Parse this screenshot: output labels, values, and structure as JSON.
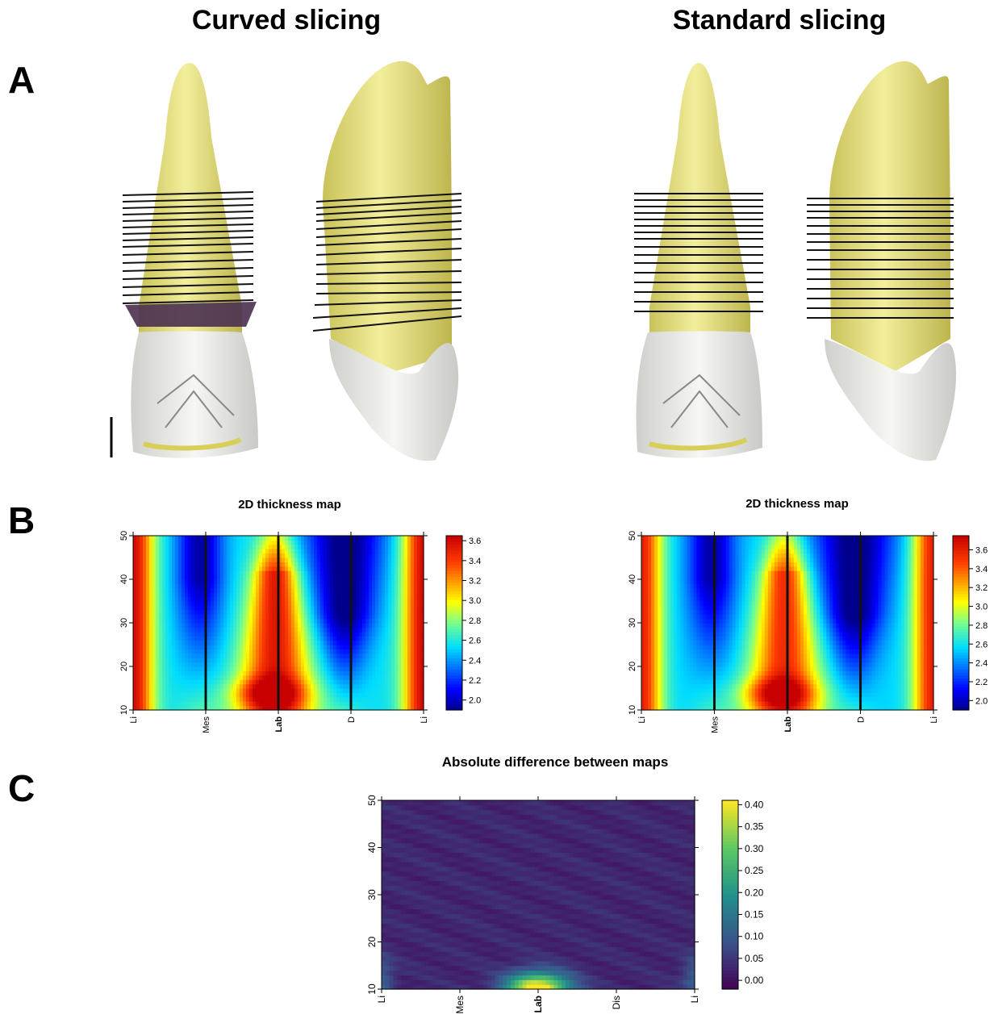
{
  "titles": {
    "curved": "Curved slicing",
    "standard": "Standard slicing"
  },
  "panels": {
    "a": "A",
    "b": "B",
    "c": "C"
  },
  "colors": {
    "enamel": "#f1f2ee",
    "dentine": "#e6df72",
    "slice": "#111111"
  },
  "chart_data": [
    {
      "type": "heatmap",
      "title": "2D thickness map",
      "panel": "B-left (Curved slicing)",
      "x_tick_labels": [
        "Li",
        "Mes",
        "Lab",
        "D",
        "Li"
      ],
      "y_ticks": [
        10,
        20,
        30,
        40,
        50
      ],
      "ylim": [
        10,
        50
      ],
      "colorbar": {
        "ticks": [
          2.0,
          2.2,
          2.4,
          2.6,
          2.8,
          3.0,
          3.2,
          3.4,
          3.6
        ],
        "range": [
          1.9,
          3.65
        ],
        "colormap": "jet"
      },
      "vertical_lines_at": [
        "Mes",
        "Lab",
        "D"
      ]
    },
    {
      "type": "heatmap",
      "title": "2D thickness map",
      "panel": "B-right (Standard slicing)",
      "x_tick_labels": [
        "Li",
        "Mes",
        "Lab",
        "D",
        "Li"
      ],
      "y_ticks": [
        10,
        20,
        30,
        40,
        50
      ],
      "ylim": [
        10,
        50
      ],
      "colorbar": {
        "ticks": [
          2.0,
          2.2,
          2.4,
          2.6,
          2.8,
          3.0,
          3.2,
          3.4,
          3.6
        ],
        "range": [
          1.9,
          3.75
        ],
        "colormap": "jet"
      },
      "vertical_lines_at": [
        "Mes",
        "Lab",
        "D"
      ]
    },
    {
      "type": "heatmap",
      "title": "Absolute difference between maps",
      "panel": "C",
      "x_tick_labels": [
        "Li",
        "Mes",
        "Lab",
        "Dis",
        "Li"
      ],
      "y_ticks": [
        10,
        20,
        30,
        40,
        50
      ],
      "ylim": [
        10,
        50
      ],
      "colorbar": {
        "ticks": [
          0.0,
          0.05,
          0.1,
          0.15,
          0.2,
          0.25,
          0.3,
          0.35,
          0.4
        ],
        "tick_labels": [
          "0.00",
          "0.05",
          "0.10",
          "0.15",
          "0.20",
          "0.25",
          "0.30",
          "0.35",
          "0.40"
        ],
        "range": [
          -0.02,
          0.41
        ],
        "colormap": "viridis"
      },
      "max_difference_region": {
        "x": "Lab",
        "y": 10,
        "value": 0.4
      }
    }
  ]
}
